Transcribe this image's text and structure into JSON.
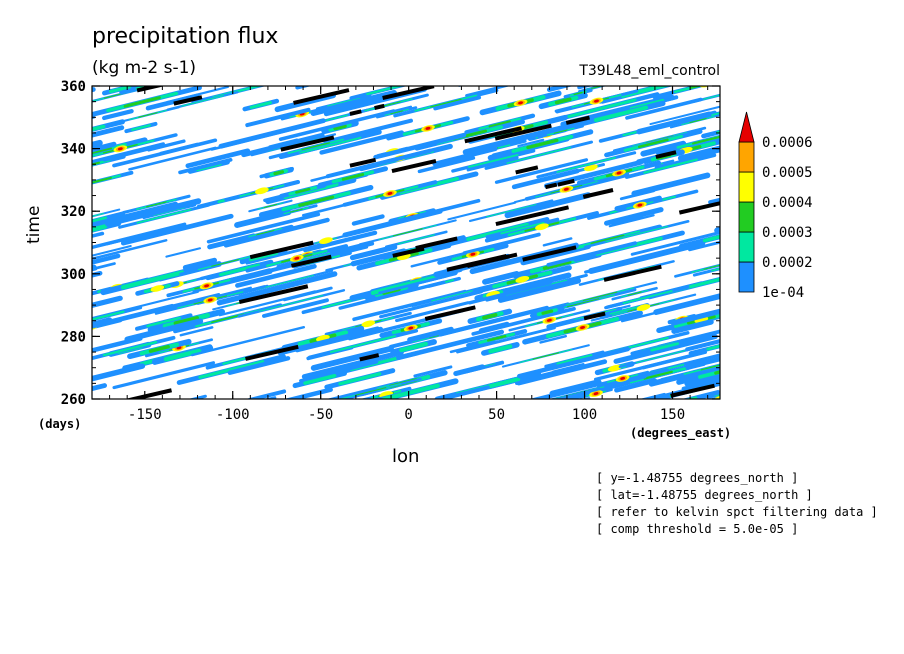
{
  "chart_data": {
    "type": "heatmap",
    "title": "precipitation flux",
    "subtitle": "(kg m-2 s-1)",
    "dataset_label": "T39L48_eml_control",
    "xlabel": "lon",
    "ylabel": "time",
    "x_unit_label": "(degrees_east)",
    "y_unit_label": "(days)",
    "xlim": [
      -180,
      177
    ],
    "ylim": [
      260,
      360
    ],
    "x_ticks": [
      -150,
      -100,
      -50,
      0,
      50,
      100,
      150
    ],
    "x_tick_labels": [
      "-150",
      "-100",
      "-50",
      "0",
      "50",
      "100",
      "150"
    ],
    "y_ticks": [
      260,
      280,
      300,
      320,
      340,
      360
    ],
    "y_tick_labels": [
      "260",
      "280",
      "300",
      "320",
      "340",
      "360"
    ],
    "colorbar": {
      "levels": [
        "1e-04",
        "0.0002",
        "0.0003",
        "0.0004",
        "0.0005",
        "0.0006"
      ],
      "colors": [
        "#1e90ff",
        "#00e8a0",
        "#22cc22",
        "#ffff00",
        "#ffa500",
        "#e60000"
      ]
    },
    "annotations": [
      "[ y=-1.48755 degrees_north ]",
      "[ lat=-1.48755 degrees_north ]",
      "[ refer to kelvin spct filtering data ]",
      "[ comp threshold = 5.0e-05 ]"
    ]
  }
}
